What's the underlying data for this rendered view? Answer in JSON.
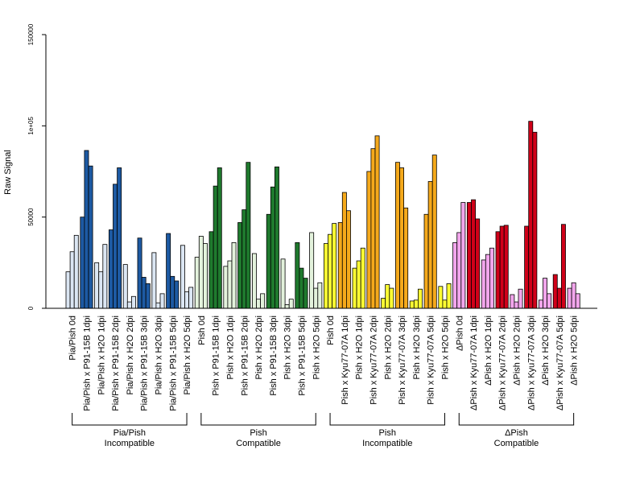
{
  "chart_data": {
    "type": "bar",
    "title": "",
    "xlabel": "",
    "ylabel": "Raw Signal",
    "ylim": [
      0,
      150000
    ],
    "yticks": [
      0,
      50000,
      100000,
      150000
    ],
    "ytick_labels": [
      "0",
      "50000",
      "1e+05",
      "150000"
    ],
    "grid": false,
    "legend": "none",
    "categories": [
      "Pia/Pish 0d",
      "Pia/Pish x P91-15B 1dpi",
      "Pia/Pish x H2O 1dpi",
      "Pia/Pish x P91-15B 2dpi",
      "Pia/Pish x H2O 2dpi",
      "Pia/Pish x P91-15B 3dpi",
      "Pia/Pish x H2O 3dpi",
      "Pia/Pish x P91-15B 5dpi",
      "Pia/Pish x H2O 5dpi",
      "Pish 0d",
      "Pish x P91-15B 1dpi",
      "Pish x H2O 1dpi",
      "Pish x P91-15B 2dpi",
      "Pish x H2O 2dpi",
      "Pish x P91-15B 3dpi",
      "Pish x H2O 3dpi",
      "Pish x P91-15B 5dpi",
      "Pish x H2O 5dpi",
      "Pish 0d",
      "Pish x Kyu77-07A 1dpi",
      "Pish x H2O 1dpi",
      "Pish x Kyu77-07A 2dpi",
      "Pish x H2O 2dpi",
      "Pish x Kyu77-07A 3dpi",
      "Pish x H2O 3dpi",
      "Pish x Kyu77-07A 5dpi",
      "Pish x H2O 5dpi",
      "ΔPish 0d",
      "ΔPish x Kyu77-07A 1dpi",
      "ΔPish x H2O 1dpi",
      "ΔPish x Kyu77-07A 2dpi",
      "ΔPish x H2O 2dpi",
      "ΔPish x Kyu77-07A 3dpi",
      "ΔPish x H2O 3dpi",
      "ΔPish x Kyu77-07A 5dpi",
      "ΔPish x H2O 5dpi"
    ],
    "replicates": [
      [
        20000,
        31000,
        40000
      ],
      [
        50000,
        86500,
        78000
      ],
      [
        25000,
        20000,
        35000
      ],
      [
        43000,
        68000,
        77000
      ],
      [
        24000,
        3500,
        6500
      ],
      [
        38500,
        17000,
        13500
      ],
      [
        30500,
        3000,
        8000
      ],
      [
        41000,
        17500,
        15000
      ],
      [
        34500,
        9000,
        11500
      ],
      [
        28000,
        39500,
        35500
      ],
      [
        42000,
        67000,
        77000
      ],
      [
        23000,
        26000,
        36000
      ],
      [
        47000,
        54000,
        80000
      ],
      [
        30000,
        5000,
        8000
      ],
      [
        51500,
        66500,
        77500
      ],
      [
        27000,
        2000,
        5000
      ],
      [
        36000,
        22000,
        16500
      ],
      [
        41500,
        11000,
        14000
      ],
      [
        35500,
        40500,
        46500
      ],
      [
        47000,
        63500,
        53500
      ],
      [
        22000,
        26000,
        33000
      ],
      [
        75000,
        87500,
        94500
      ],
      [
        5500,
        13000,
        11000
      ],
      [
        80000,
        77000,
        55000
      ],
      [
        4000,
        4500,
        10500
      ],
      [
        51500,
        69500,
        84000
      ],
      [
        12000,
        4500,
        13500
      ],
      [
        36000,
        41500,
        58000
      ],
      [
        58000,
        59500,
        49000
      ],
      [
        26500,
        29500,
        33000
      ],
      [
        42000,
        45000,
        45500
      ],
      [
        7500,
        3500,
        10500
      ],
      [
        45000,
        102500,
        96500
      ],
      [
        4500,
        16500,
        8000
      ],
      [
        18500,
        11000,
        46000
      ],
      [
        11000,
        14000,
        8000
      ]
    ],
    "series": [
      {
        "values": [
          20000,
          50000,
          25000,
          43000,
          24000,
          38500,
          30500,
          41000,
          34500,
          28000,
          42000,
          23000,
          47000,
          30000,
          51500,
          27000,
          36000,
          41500,
          35500,
          47000,
          22000,
          75000,
          5500,
          80000,
          4000,
          51500,
          12000,
          36000,
          58000,
          26500,
          42000,
          7500,
          45000,
          4500,
          18500,
          11000
        ]
      },
      {
        "values": [
          31000,
          86500,
          20000,
          68000,
          3500,
          17000,
          3000,
          17500,
          9000,
          39500,
          67000,
          26000,
          54000,
          5000,
          66500,
          2000,
          22000,
          11000,
          40500,
          63500,
          26000,
          87500,
          13000,
          77000,
          4500,
          69500,
          4500,
          41500,
          59500,
          29500,
          45000,
          3500,
          102500,
          16500,
          11000,
          14000
        ]
      },
      {
        "values": [
          40000,
          78000,
          35000,
          77000,
          6500,
          13500,
          8000,
          15000,
          11500,
          35500,
          77000,
          36000,
          80000,
          8000,
          77500,
          5000,
          16500,
          14000,
          46500,
          53500,
          33000,
          94500,
          11000,
          55000,
          10500,
          84000,
          13500,
          58000,
          49000,
          33000,
          45500,
          10500,
          96500,
          8000,
          46000,
          8000
        ]
      }
    ],
    "bar_colors": [
      "#dbe6f3",
      "#1d5aa3",
      "#dbe6f3",
      "#1d5aa3",
      "#dbe6f3",
      "#1d5aa3",
      "#dbe6f3",
      "#1d5aa3",
      "#dbe6f3",
      "#e3f2dc",
      "#1f7a2e",
      "#e3f2dc",
      "#1f7a2e",
      "#e3f2dc",
      "#1f7a2e",
      "#e3f2dc",
      "#1f7a2e",
      "#e3f2dc",
      "#ffff33",
      "#f5a91b",
      "#ffff33",
      "#f5a91b",
      "#ffff33",
      "#f5a91b",
      "#ffff33",
      "#f5a91b",
      "#ffff33",
      "#f2a6ec",
      "#d00019",
      "#f2a6ec",
      "#d00019",
      "#f2a6ec",
      "#d00019",
      "#f2a6ec",
      "#d00019",
      "#f2a6ec"
    ],
    "groups": [
      {
        "label_line1": "Pia/Pish",
        "label_line2": "Incompatible",
        "start": 0,
        "end": 8
      },
      {
        "label_line1": "Pish",
        "label_line2": "Compatible",
        "start": 9,
        "end": 17
      },
      {
        "label_line1": "Pish",
        "label_line2": "Incompatible",
        "start": 18,
        "end": 26
      },
      {
        "label_line1": "ΔPish",
        "label_line2": "Compatible",
        "start": 27,
        "end": 35
      }
    ]
  }
}
